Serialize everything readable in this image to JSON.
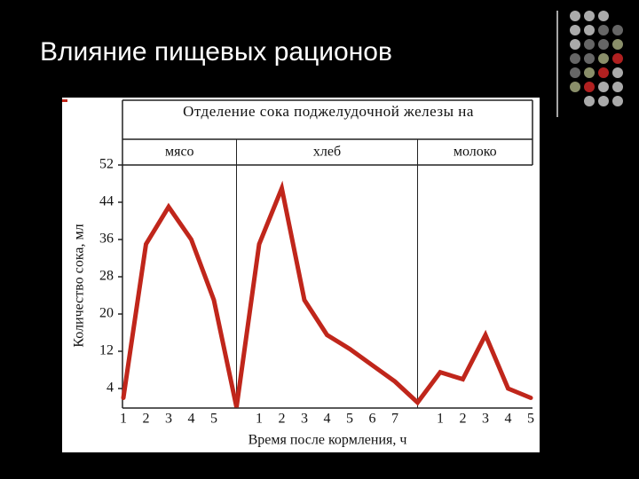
{
  "title": "Влияние пищевых рационов",
  "chart_data": {
    "type": "line",
    "title": "Отделение сока поджелудочной железы на",
    "sections": [
      "мясо",
      "хлеб",
      "молоко"
    ],
    "categories": [
      "1",
      "2",
      "3",
      "4",
      "5",
      null,
      "1",
      "2",
      "3",
      "4",
      "5",
      "6",
      "7",
      null,
      "1",
      "2",
      "3",
      "4",
      "5"
    ],
    "series": [
      {
        "color": "#c0261b",
        "values": [
          2,
          35,
          43,
          36,
          23,
          0,
          35,
          47,
          23,
          15.5,
          12.5,
          9,
          5.5,
          1,
          7.5,
          6,
          15.5,
          4,
          2
        ]
      }
    ],
    "ylim": [
      0,
      52
    ],
    "yticks": [
      4,
      12,
      20,
      28,
      36,
      44,
      52
    ],
    "x_label": "Время после кормления, ч",
    "y_label": "Количество сока, мл"
  }
}
